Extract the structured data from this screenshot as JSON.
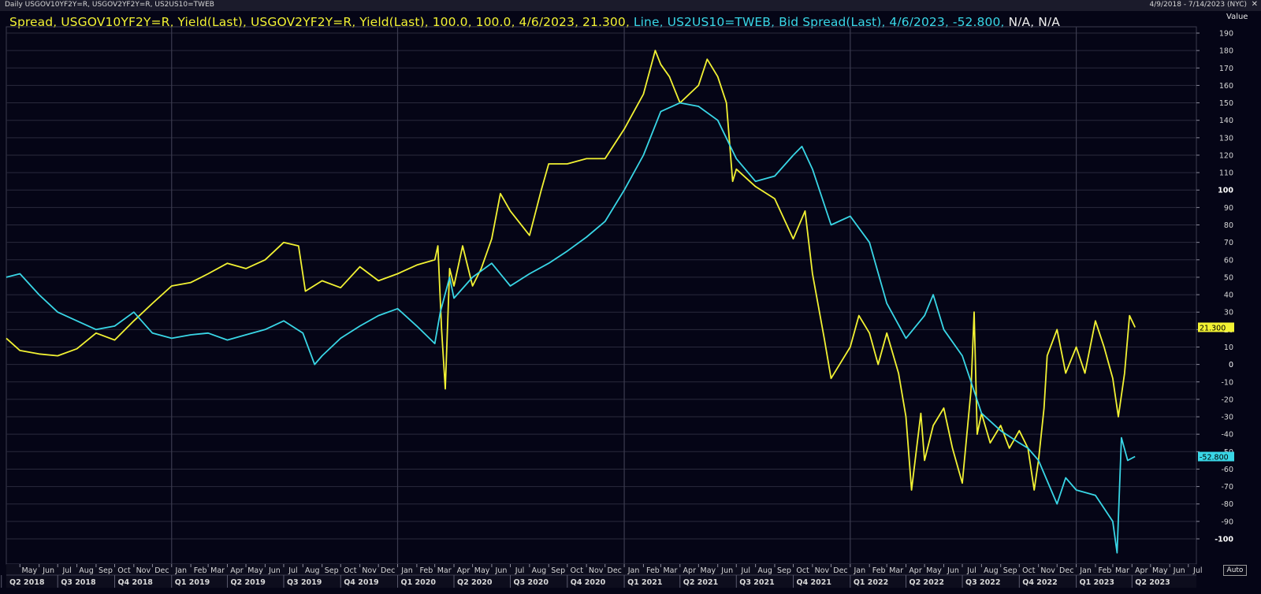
{
  "header": {
    "left_text": "Daily USGOV10YF2Y=R, USGOV2YF2Y=R, US2US10=TWEB",
    "right_text": "4/9/2018 - 7/14/2023 (NYC)"
  },
  "value_axis_title": "Value",
  "auto_label": "Auto",
  "legend": {
    "series1": "Spread, USGOV10YF2Y=R, Yield(Last), USGOV2YF2Y=R, Yield(Last),  100.0, 100.0, 4/6/2023, 21.300,",
    "series2": " Line, US2US10=TWEB, Bid Spread(Last), 4/6/2023, -52.800,",
    "na": " N/A, N/A"
  },
  "last_labels": {
    "yellow": "21.300",
    "cyan": "-52.800"
  },
  "colors": {
    "yellow": "#f2f233",
    "cyan": "#39d6e6",
    "background": "#050516",
    "grid": "#2a2a3c"
  },
  "chart_data": {
    "type": "line",
    "x_range": [
      "2018-04-09",
      "2023-07-14"
    ],
    "ylim": [
      -110,
      195
    ],
    "y_ticks": [
      190,
      180,
      170,
      160,
      150,
      140,
      130,
      120,
      110,
      100,
      90,
      80,
      70,
      60,
      50,
      40,
      30,
      20,
      10,
      0,
      -10,
      -20,
      -30,
      -40,
      -50,
      -60,
      -70,
      -80,
      -90,
      -100
    ],
    "month_labels": [
      "May",
      "Jun",
      "Jul",
      "Aug",
      "Sep",
      "Oct",
      "Nov",
      "Dec",
      "Jan",
      "Feb",
      "Mar",
      "Apr",
      "May",
      "Jun",
      "Jul",
      "Aug",
      "Sep",
      "Oct",
      "Nov",
      "Dec",
      "Jan",
      "Feb",
      "Mar",
      "Apr",
      "May",
      "Jun",
      "Jul",
      "Aug",
      "Sep",
      "Oct",
      "Nov",
      "Dec",
      "Jan",
      "Feb",
      "Mar",
      "Apr",
      "May",
      "Jun",
      "Jul",
      "Aug",
      "Sep",
      "Oct",
      "Nov",
      "Dec",
      "Jan",
      "Feb",
      "Mar",
      "Apr",
      "May",
      "Jun",
      "Jul",
      "Aug",
      "Sep",
      "Oct",
      "Nov",
      "Dec",
      "Jan",
      "Feb",
      "Mar",
      "Apr",
      "May",
      "Jun",
      "Jul"
    ],
    "month_dates": [
      "2018-05",
      "2018-06",
      "2018-07",
      "2018-08",
      "2018-09",
      "2018-10",
      "2018-11",
      "2018-12",
      "2019-01",
      "2019-02",
      "2019-03",
      "2019-04",
      "2019-05",
      "2019-06",
      "2019-07",
      "2019-08",
      "2019-09",
      "2019-10",
      "2019-11",
      "2019-12",
      "2020-01",
      "2020-02",
      "2020-03",
      "2020-04",
      "2020-05",
      "2020-06",
      "2020-07",
      "2020-08",
      "2020-09",
      "2020-10",
      "2020-11",
      "2020-12",
      "2021-01",
      "2021-02",
      "2021-03",
      "2021-04",
      "2021-05",
      "2021-06",
      "2021-07",
      "2021-08",
      "2021-09",
      "2021-10",
      "2021-11",
      "2021-12",
      "2022-01",
      "2022-02",
      "2022-03",
      "2022-04",
      "2022-05",
      "2022-06",
      "2022-07",
      "2022-08",
      "2022-09",
      "2022-10",
      "2022-11",
      "2022-12",
      "2023-01",
      "2023-02",
      "2023-03",
      "2023-04",
      "2023-05",
      "2023-06",
      "2023-07"
    ],
    "quarter_labels": [
      "Q2 2018",
      "Q3 2018",
      "Q4 2018",
      "Q1 2019",
      "Q2 2019",
      "Q3 2019",
      "Q4 2019",
      "Q1 2020",
      "Q2 2020",
      "Q3 2020",
      "Q4 2020",
      "Q1 2021",
      "Q2 2021",
      "Q3 2021",
      "Q4 2021",
      "Q1 2022",
      "Q2 2022",
      "Q3 2022",
      "Q4 2022",
      "Q1 2023",
      "Q2 2023"
    ],
    "quarter_dates": [
      "2018-04",
      "2018-07",
      "2018-10",
      "2019-01",
      "2019-04",
      "2019-07",
      "2019-10",
      "2020-01",
      "2020-04",
      "2020-07",
      "2020-10",
      "2021-01",
      "2021-04",
      "2021-07",
      "2021-10",
      "2022-01",
      "2022-04",
      "2022-07",
      "2022-10",
      "2023-01",
      "2023-04"
    ],
    "year_gridlines": [
      "2019-01",
      "2020-01",
      "2021-01",
      "2022-01",
      "2023-01"
    ],
    "series": [
      {
        "color": "#f2f233",
        "points": [
          [
            "2018-04-09",
            15
          ],
          [
            "2018-05-01",
            8
          ],
          [
            "2018-06-01",
            6
          ],
          [
            "2018-07-01",
            5
          ],
          [
            "2018-08-01",
            9
          ],
          [
            "2018-09-01",
            18
          ],
          [
            "2018-10-01",
            14
          ],
          [
            "2018-11-01",
            25
          ],
          [
            "2018-12-01",
            35
          ],
          [
            "2019-01-01",
            45
          ],
          [
            "2019-02-01",
            47
          ],
          [
            "2019-03-01",
            52
          ],
          [
            "2019-04-01",
            58
          ],
          [
            "2019-05-01",
            55
          ],
          [
            "2019-06-01",
            60
          ],
          [
            "2019-07-01",
            70
          ],
          [
            "2019-07-25",
            68
          ],
          [
            "2019-08-05",
            42
          ],
          [
            "2019-09-01",
            48
          ],
          [
            "2019-10-01",
            44
          ],
          [
            "2019-11-01",
            56
          ],
          [
            "2019-12-01",
            48
          ],
          [
            "2020-01-01",
            52
          ],
          [
            "2020-02-01",
            57
          ],
          [
            "2020-03-01",
            60
          ],
          [
            "2020-03-06",
            68
          ],
          [
            "2020-03-12",
            20
          ],
          [
            "2020-03-18",
            -14
          ],
          [
            "2020-03-25",
            55
          ],
          [
            "2020-04-01",
            45
          ],
          [
            "2020-04-15",
            68
          ],
          [
            "2020-05-01",
            45
          ],
          [
            "2020-05-15",
            55
          ],
          [
            "2020-06-01",
            72
          ],
          [
            "2020-06-15",
            98
          ],
          [
            "2020-07-01",
            88
          ],
          [
            "2020-08-01",
            74
          ],
          [
            "2020-08-20",
            100
          ],
          [
            "2020-09-01",
            115
          ],
          [
            "2020-10-01",
            115
          ],
          [
            "2020-11-01",
            118
          ],
          [
            "2020-12-01",
            118
          ],
          [
            "2021-01-01",
            135
          ],
          [
            "2021-02-01",
            155
          ],
          [
            "2021-02-20",
            180
          ],
          [
            "2021-03-01",
            172
          ],
          [
            "2021-03-15",
            165
          ],
          [
            "2021-04-01",
            150
          ],
          [
            "2021-05-01",
            160
          ],
          [
            "2021-05-15",
            175
          ],
          [
            "2021-06-01",
            165
          ],
          [
            "2021-06-15",
            150
          ],
          [
            "2021-06-25",
            105
          ],
          [
            "2021-07-01",
            112
          ],
          [
            "2021-08-01",
            102
          ],
          [
            "2021-09-01",
            95
          ],
          [
            "2021-10-01",
            72
          ],
          [
            "2021-10-20",
            88
          ],
          [
            "2021-11-01",
            52
          ],
          [
            "2021-11-20",
            15
          ],
          [
            "2021-12-01",
            -8
          ],
          [
            "2022-01-01",
            10
          ],
          [
            "2022-01-15",
            28
          ],
          [
            "2022-02-01",
            18
          ],
          [
            "2022-02-15",
            0
          ],
          [
            "2022-03-01",
            18
          ],
          [
            "2022-03-20",
            -5
          ],
          [
            "2022-04-01",
            -30
          ],
          [
            "2022-04-10",
            -72
          ],
          [
            "2022-04-25",
            -28
          ],
          [
            "2022-05-01",
            -55
          ],
          [
            "2022-05-15",
            -35
          ],
          [
            "2022-06-01",
            -25
          ],
          [
            "2022-06-15",
            -48
          ],
          [
            "2022-07-01",
            -68
          ],
          [
            "2022-07-15",
            -15
          ],
          [
            "2022-07-20",
            30
          ],
          [
            "2022-07-25",
            -40
          ],
          [
            "2022-08-01",
            -28
          ],
          [
            "2022-08-15",
            -45
          ],
          [
            "2022-09-01",
            -35
          ],
          [
            "2022-09-15",
            -48
          ],
          [
            "2022-10-01",
            -38
          ],
          [
            "2022-10-15",
            -48
          ],
          [
            "2022-10-25",
            -72
          ],
          [
            "2022-11-01",
            -55
          ],
          [
            "2022-11-10",
            -25
          ],
          [
            "2022-11-15",
            5
          ],
          [
            "2022-12-01",
            20
          ],
          [
            "2022-12-15",
            -5
          ],
          [
            "2023-01-01",
            10
          ],
          [
            "2023-01-15",
            -5
          ],
          [
            "2023-02-01",
            25
          ],
          [
            "2023-02-15",
            10
          ],
          [
            "2023-03-01",
            -8
          ],
          [
            "2023-03-10",
            -30
          ],
          [
            "2023-03-20",
            -5
          ],
          [
            "2023-03-28",
            28
          ],
          [
            "2023-04-06",
            21.3
          ]
        ]
      },
      {
        "color": "#39d6e6",
        "points": [
          [
            "2018-04-09",
            50
          ],
          [
            "2018-05-01",
            52
          ],
          [
            "2018-06-01",
            40
          ],
          [
            "2018-07-01",
            30
          ],
          [
            "2018-08-01",
            25
          ],
          [
            "2018-09-01",
            20
          ],
          [
            "2018-10-01",
            22
          ],
          [
            "2018-11-01",
            30
          ],
          [
            "2018-12-01",
            18
          ],
          [
            "2019-01-01",
            15
          ],
          [
            "2019-02-01",
            17
          ],
          [
            "2019-03-01",
            18
          ],
          [
            "2019-04-01",
            14
          ],
          [
            "2019-05-01",
            17
          ],
          [
            "2019-06-01",
            20
          ],
          [
            "2019-07-01",
            25
          ],
          [
            "2019-08-01",
            18
          ],
          [
            "2019-08-20",
            0
          ],
          [
            "2019-09-01",
            5
          ],
          [
            "2019-10-01",
            15
          ],
          [
            "2019-11-01",
            22
          ],
          [
            "2019-12-01",
            28
          ],
          [
            "2020-01-01",
            32
          ],
          [
            "2020-02-01",
            22
          ],
          [
            "2020-03-01",
            12
          ],
          [
            "2020-03-10",
            30
          ],
          [
            "2020-03-25",
            50
          ],
          [
            "2020-04-01",
            38
          ],
          [
            "2020-05-01",
            50
          ],
          [
            "2020-06-01",
            58
          ],
          [
            "2020-07-01",
            45
          ],
          [
            "2020-08-01",
            52
          ],
          [
            "2020-09-01",
            58
          ],
          [
            "2020-10-01",
            65
          ],
          [
            "2020-11-01",
            73
          ],
          [
            "2020-12-01",
            82
          ],
          [
            "2021-01-01",
            100
          ],
          [
            "2021-02-01",
            120
          ],
          [
            "2021-03-01",
            145
          ],
          [
            "2021-04-01",
            150
          ],
          [
            "2021-05-01",
            148
          ],
          [
            "2021-06-01",
            140
          ],
          [
            "2021-07-01",
            118
          ],
          [
            "2021-08-01",
            105
          ],
          [
            "2021-09-01",
            108
          ],
          [
            "2021-10-01",
            120
          ],
          [
            "2021-10-15",
            125
          ],
          [
            "2021-11-01",
            112
          ],
          [
            "2021-12-01",
            80
          ],
          [
            "2022-01-01",
            85
          ],
          [
            "2022-02-01",
            70
          ],
          [
            "2022-03-01",
            35
          ],
          [
            "2022-04-01",
            15
          ],
          [
            "2022-05-01",
            28
          ],
          [
            "2022-05-15",
            40
          ],
          [
            "2022-06-01",
            20
          ],
          [
            "2022-07-01",
            5
          ],
          [
            "2022-08-01",
            -28
          ],
          [
            "2022-09-01",
            -38
          ],
          [
            "2022-10-01",
            -45
          ],
          [
            "2022-10-15",
            -48
          ],
          [
            "2022-11-01",
            -55
          ],
          [
            "2022-12-01",
            -80
          ],
          [
            "2022-12-15",
            -65
          ],
          [
            "2023-01-01",
            -72
          ],
          [
            "2023-02-01",
            -75
          ],
          [
            "2023-03-01",
            -90
          ],
          [
            "2023-03-08",
            -108
          ],
          [
            "2023-03-15",
            -42
          ],
          [
            "2023-03-25",
            -55
          ],
          [
            "2023-04-06",
            -52.8
          ]
        ]
      }
    ]
  }
}
